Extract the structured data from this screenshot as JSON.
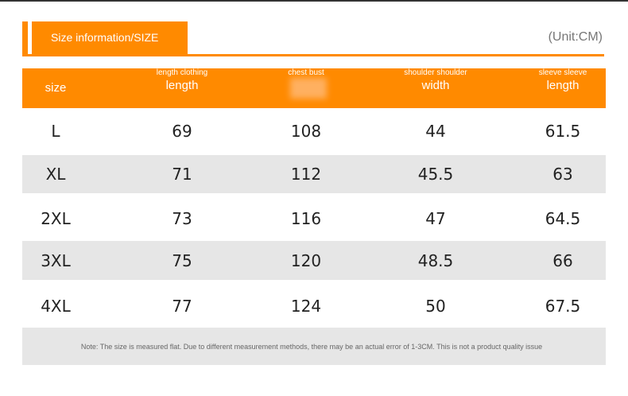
{
  "header": {
    "title": "Size information/SIZE",
    "unit": "(Unit:CM)"
  },
  "table": {
    "columns": [
      {
        "label": "size"
      },
      {
        "sub": "length clothing",
        "label": "length"
      },
      {
        "sub": "chest bust"
      },
      {
        "sub": "shoulder shoulder",
        "label": "width"
      },
      {
        "sub": "sleeve sleeve",
        "label": "length"
      }
    ],
    "rows": [
      [
        "L",
        69,
        108,
        44,
        61.5
      ],
      [
        "XL",
        71,
        112,
        45.5,
        63
      ],
      [
        "2XL",
        73,
        116,
        47,
        64.5
      ],
      [
        "3XL",
        75,
        120,
        48.5,
        66
      ],
      [
        "4XL",
        77,
        124,
        50,
        67.5
      ]
    ]
  },
  "note": "Note: The size is measured flat. Due to different measurement methods, there may be an actual error of 1-3CM. This is not a product quality issue"
}
